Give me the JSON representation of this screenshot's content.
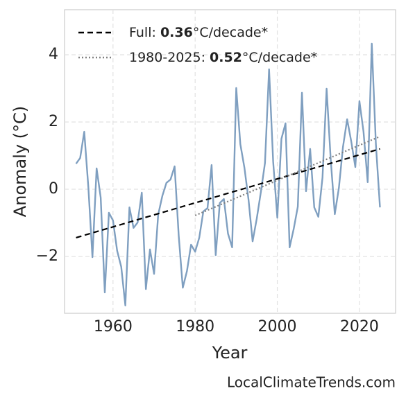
{
  "chart_data": {
    "type": "line",
    "x_label": "Year",
    "y_label": "Anomaly (°C)",
    "source": "LocalClimateTrends.com",
    "xlim": [
      1948.2,
      2028.8
    ],
    "ylim": [
      -3.69,
      5.34
    ],
    "xticks": [
      1960,
      1980,
      2000,
      2020
    ],
    "yticks": [
      {
        "value": -2,
        "label": "−2"
      },
      0,
      2,
      4
    ],
    "grid": true,
    "legend_position": "upper left",
    "series": [
      {
        "color": "#7f9fc0",
        "style": "solid",
        "x": [
          1951,
          1952,
          1953,
          1954,
          1955,
          1956,
          1957,
          1958,
          1959,
          1960,
          1961,
          1962,
          1963,
          1964,
          1965,
          1966,
          1967,
          1968,
          1969,
          1970,
          1971,
          1972,
          1973,
          1974,
          1975,
          1976,
          1977,
          1978,
          1979,
          1980,
          1981,
          1982,
          1983,
          1984,
          1985,
          1986,
          1987,
          1988,
          1989,
          1990,
          1991,
          1992,
          1993,
          1994,
          1995,
          1996,
          1997,
          1998,
          1999,
          2000,
          2001,
          2002,
          2003,
          2004,
          2005,
          2006,
          2007,
          2008,
          2009,
          2010,
          2011,
          2012,
          2013,
          2014,
          2015,
          2016,
          2017,
          2018,
          2019,
          2020,
          2021,
          2022,
          2023,
          2024,
          2025
        ],
        "values": [
          0.76,
          0.93,
          1.71,
          0.06,
          -2.02,
          0.62,
          -0.25,
          -3.07,
          -0.7,
          -0.93,
          -1.83,
          -2.31,
          -3.46,
          -0.54,
          -1.15,
          -0.99,
          -0.1,
          -2.97,
          -1.79,
          -2.52,
          -0.76,
          -0.2,
          0.19,
          0.29,
          0.68,
          -1.38,
          -2.93,
          -2.43,
          -1.65,
          -1.86,
          -1.44,
          -0.66,
          -0.56,
          0.72,
          -1.96,
          -0.41,
          -0.29,
          -1.32,
          -1.73,
          3.01,
          1.34,
          0.64,
          -0.31,
          -1.55,
          -0.87,
          -0.08,
          0.78,
          3.57,
          0.82,
          -0.85,
          1.5,
          1.96,
          -1.73,
          -1.18,
          -0.52,
          2.87,
          -0.06,
          1.2,
          -0.54,
          -0.82,
          0.35,
          2.99,
          0.89,
          -0.74,
          0.04,
          1.26,
          2.08,
          1.42,
          0.66,
          2.62,
          1.71,
          0.21,
          4.33,
          1.34,
          -0.54
        ]
      },
      {
        "name": {
          "prefix": "Full: ",
          "rate": "0.36",
          "suffix": "°C/decade*"
        },
        "color": "#000000",
        "style": "dashed",
        "x": [
          1951,
          2025
        ],
        "values": [
          -1.44,
          1.2
        ]
      },
      {
        "name": {
          "prefix": "1980-2025: ",
          "rate": "0.52",
          "suffix": "°C/decade*"
        },
        "color": "#808080",
        "style": "dotted",
        "x": [
          1980,
          2025
        ],
        "values": [
          -0.78,
          1.57
        ]
      }
    ]
  }
}
